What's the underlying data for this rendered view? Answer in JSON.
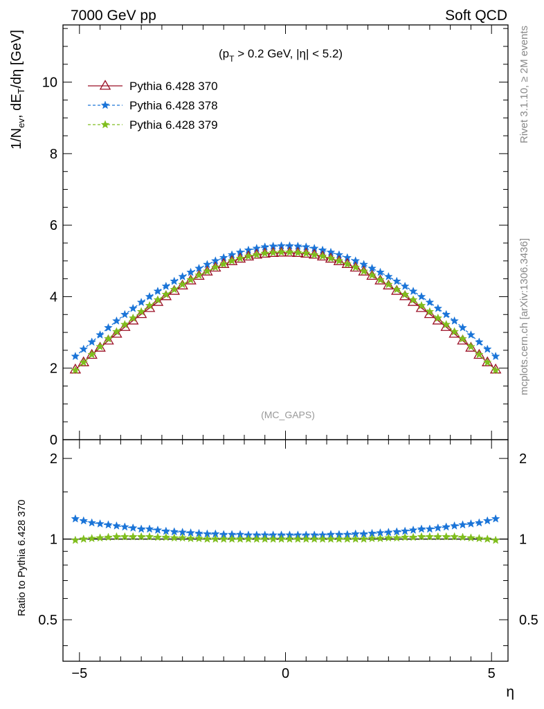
{
  "header": {
    "left": "7000 GeV pp",
    "right": "Soft QCD"
  },
  "side_labels": {
    "rivet": "Rivet 3.1.10, ≥ 2M events",
    "mcplots": "mcplots.cern.ch [arXiv:1306.3436]"
  },
  "cut_label_parts": {
    "open": "(p",
    "sub": "T",
    "rest": " > 0.2 GeV, |η| < 5.2)"
  },
  "watermark": "(MC_GAPS)",
  "ylabel_main_parts": [
    "1/N",
    "ev",
    ", dE",
    "T",
    "/dη [GeV]"
  ],
  "ylabel_ratio": "Ratio to Pythia 6.428 370",
  "xlabel": "η",
  "colors": {
    "p370": "#9a0e24",
    "p378": "#1a74d8",
    "p379": "#7fbe1d",
    "ref_line": "#000000"
  },
  "chart_data": [
    {
      "type": "line",
      "panel": "main",
      "ylabel": "1/N_ev, dE_T/dη [GeV]",
      "xlim": [
        -5.4,
        5.4
      ],
      "ylim": [
        0,
        11.6
      ],
      "yticks": [
        0,
        2,
        4,
        6,
        8,
        10
      ],
      "legend_position": "top-left",
      "x": [
        -5.1,
        -4.9,
        -4.7,
        -4.5,
        -4.3,
        -4.1,
        -3.9,
        -3.7,
        -3.5,
        -3.3,
        -3.1,
        -2.9,
        -2.7,
        -2.5,
        -2.3,
        -2.1,
        -1.9,
        -1.7,
        -1.5,
        -1.3,
        -1.1,
        -0.9,
        -0.7,
        -0.5,
        -0.3,
        -0.1,
        0.1,
        0.3,
        0.5,
        0.7,
        0.9,
        1.1,
        1.3,
        1.5,
        1.7,
        1.9,
        2.1,
        2.3,
        2.5,
        2.7,
        2.9,
        3.1,
        3.3,
        3.5,
        3.7,
        3.9,
        4.1,
        4.3,
        4.5,
        4.7,
        4.9,
        5.1
      ],
      "series": [
        {
          "name": "Pythia 6.428 370",
          "marker": "triangle",
          "values": [
            1.96,
            2.16,
            2.37,
            2.57,
            2.77,
            2.96,
            3.15,
            3.33,
            3.51,
            3.68,
            3.85,
            4.01,
            4.16,
            4.31,
            4.45,
            4.58,
            4.7,
            4.81,
            4.91,
            4.99,
            5.06,
            5.12,
            5.17,
            5.2,
            5.22,
            5.23,
            5.23,
            5.22,
            5.2,
            5.17,
            5.12,
            5.06,
            4.99,
            4.91,
            4.81,
            4.7,
            4.58,
            4.45,
            4.31,
            4.16,
            4.01,
            3.85,
            3.68,
            3.51,
            3.33,
            3.15,
            2.96,
            2.77,
            2.57,
            2.37,
            2.16,
            1.96
          ]
        },
        {
          "name": "Pythia 6.428 378",
          "marker": "star",
          "values": [
            2.33,
            2.53,
            2.73,
            2.93,
            3.13,
            3.32,
            3.5,
            3.67,
            3.84,
            4.0,
            4.15,
            4.29,
            4.43,
            4.56,
            4.68,
            4.79,
            4.9,
            5.0,
            5.09,
            5.17,
            5.24,
            5.3,
            5.35,
            5.39,
            5.41,
            5.42,
            5.42,
            5.41,
            5.39,
            5.35,
            5.3,
            5.24,
            5.17,
            5.09,
            5.0,
            4.9,
            4.79,
            4.68,
            4.56,
            4.43,
            4.29,
            4.15,
            4.0,
            3.84,
            3.67,
            3.5,
            3.32,
            3.13,
            2.93,
            2.73,
            2.53,
            2.33
          ]
        },
        {
          "name": "Pythia 6.428 379",
          "marker": "star",
          "values": [
            1.94,
            2.16,
            2.38,
            2.6,
            2.82,
            3.02,
            3.22,
            3.4,
            3.58,
            3.75,
            3.91,
            4.06,
            4.2,
            4.34,
            4.47,
            4.6,
            4.71,
            4.82,
            4.91,
            5.0,
            5.07,
            5.13,
            5.17,
            5.21,
            5.23,
            5.24,
            5.24,
            5.23,
            5.21,
            5.17,
            5.13,
            5.07,
            5.0,
            4.91,
            4.82,
            4.71,
            4.6,
            4.47,
            4.34,
            4.2,
            4.06,
            3.91,
            3.75,
            3.58,
            3.4,
            3.22,
            3.02,
            2.82,
            2.6,
            2.38,
            2.16,
            1.94
          ]
        }
      ]
    },
    {
      "type": "line",
      "panel": "ratio",
      "xlabel": "η",
      "ylabel": "Ratio to Pythia 6.428 370",
      "xlim": [
        -5.4,
        5.4
      ],
      "ylim": [
        0.35,
        2.35
      ],
      "log_y": true,
      "xticks": [
        -5,
        0,
        5
      ],
      "yticks": [
        0.5,
        1,
        2
      ],
      "x": [
        -5.1,
        -4.9,
        -4.7,
        -4.5,
        -4.3,
        -4.1,
        -3.9,
        -3.7,
        -3.5,
        -3.3,
        -3.1,
        -2.9,
        -2.7,
        -2.5,
        -2.3,
        -2.1,
        -1.9,
        -1.7,
        -1.5,
        -1.3,
        -1.1,
        -0.9,
        -0.7,
        -0.5,
        -0.3,
        -0.1,
        0.1,
        0.3,
        0.5,
        0.7,
        0.9,
        1.1,
        1.3,
        1.5,
        1.7,
        1.9,
        2.1,
        2.3,
        2.5,
        2.7,
        2.9,
        3.1,
        3.3,
        3.5,
        3.7,
        3.9,
        4.1,
        4.3,
        4.5,
        4.7,
        4.9,
        5.1
      ],
      "series": [
        {
          "name": "Pythia 6.428 378",
          "marker": "star",
          "values": [
            1.19,
            1.17,
            1.15,
            1.14,
            1.13,
            1.12,
            1.11,
            1.1,
            1.09,
            1.09,
            1.08,
            1.07,
            1.065,
            1.06,
            1.055,
            1.05,
            1.045,
            1.045,
            1.04,
            1.04,
            1.04,
            1.035,
            1.035,
            1.035,
            1.035,
            1.035,
            1.035,
            1.035,
            1.035,
            1.035,
            1.035,
            1.04,
            1.04,
            1.04,
            1.045,
            1.045,
            1.05,
            1.055,
            1.06,
            1.065,
            1.07,
            1.08,
            1.09,
            1.09,
            1.1,
            1.11,
            1.12,
            1.13,
            1.14,
            1.15,
            1.17,
            1.19
          ]
        },
        {
          "name": "Pythia 6.428 379",
          "marker": "star",
          "values": [
            0.99,
            1.0,
            1.005,
            1.01,
            1.015,
            1.02,
            1.02,
            1.02,
            1.02,
            1.02,
            1.015,
            1.015,
            1.01,
            1.01,
            1.005,
            1.005,
            1.0,
            1.0,
            1.0,
            1.0,
            1.0,
            1.0,
            1.0,
            1.0,
            1.0,
            1.0,
            1.0,
            1.0,
            1.0,
            1.0,
            1.0,
            1.0,
            1.0,
            1.0,
            1.0,
            1.0,
            1.005,
            1.005,
            1.01,
            1.01,
            1.015,
            1.015,
            1.02,
            1.02,
            1.02,
            1.02,
            1.02,
            1.015,
            1.01,
            1.005,
            1.0,
            0.99
          ]
        }
      ]
    }
  ]
}
